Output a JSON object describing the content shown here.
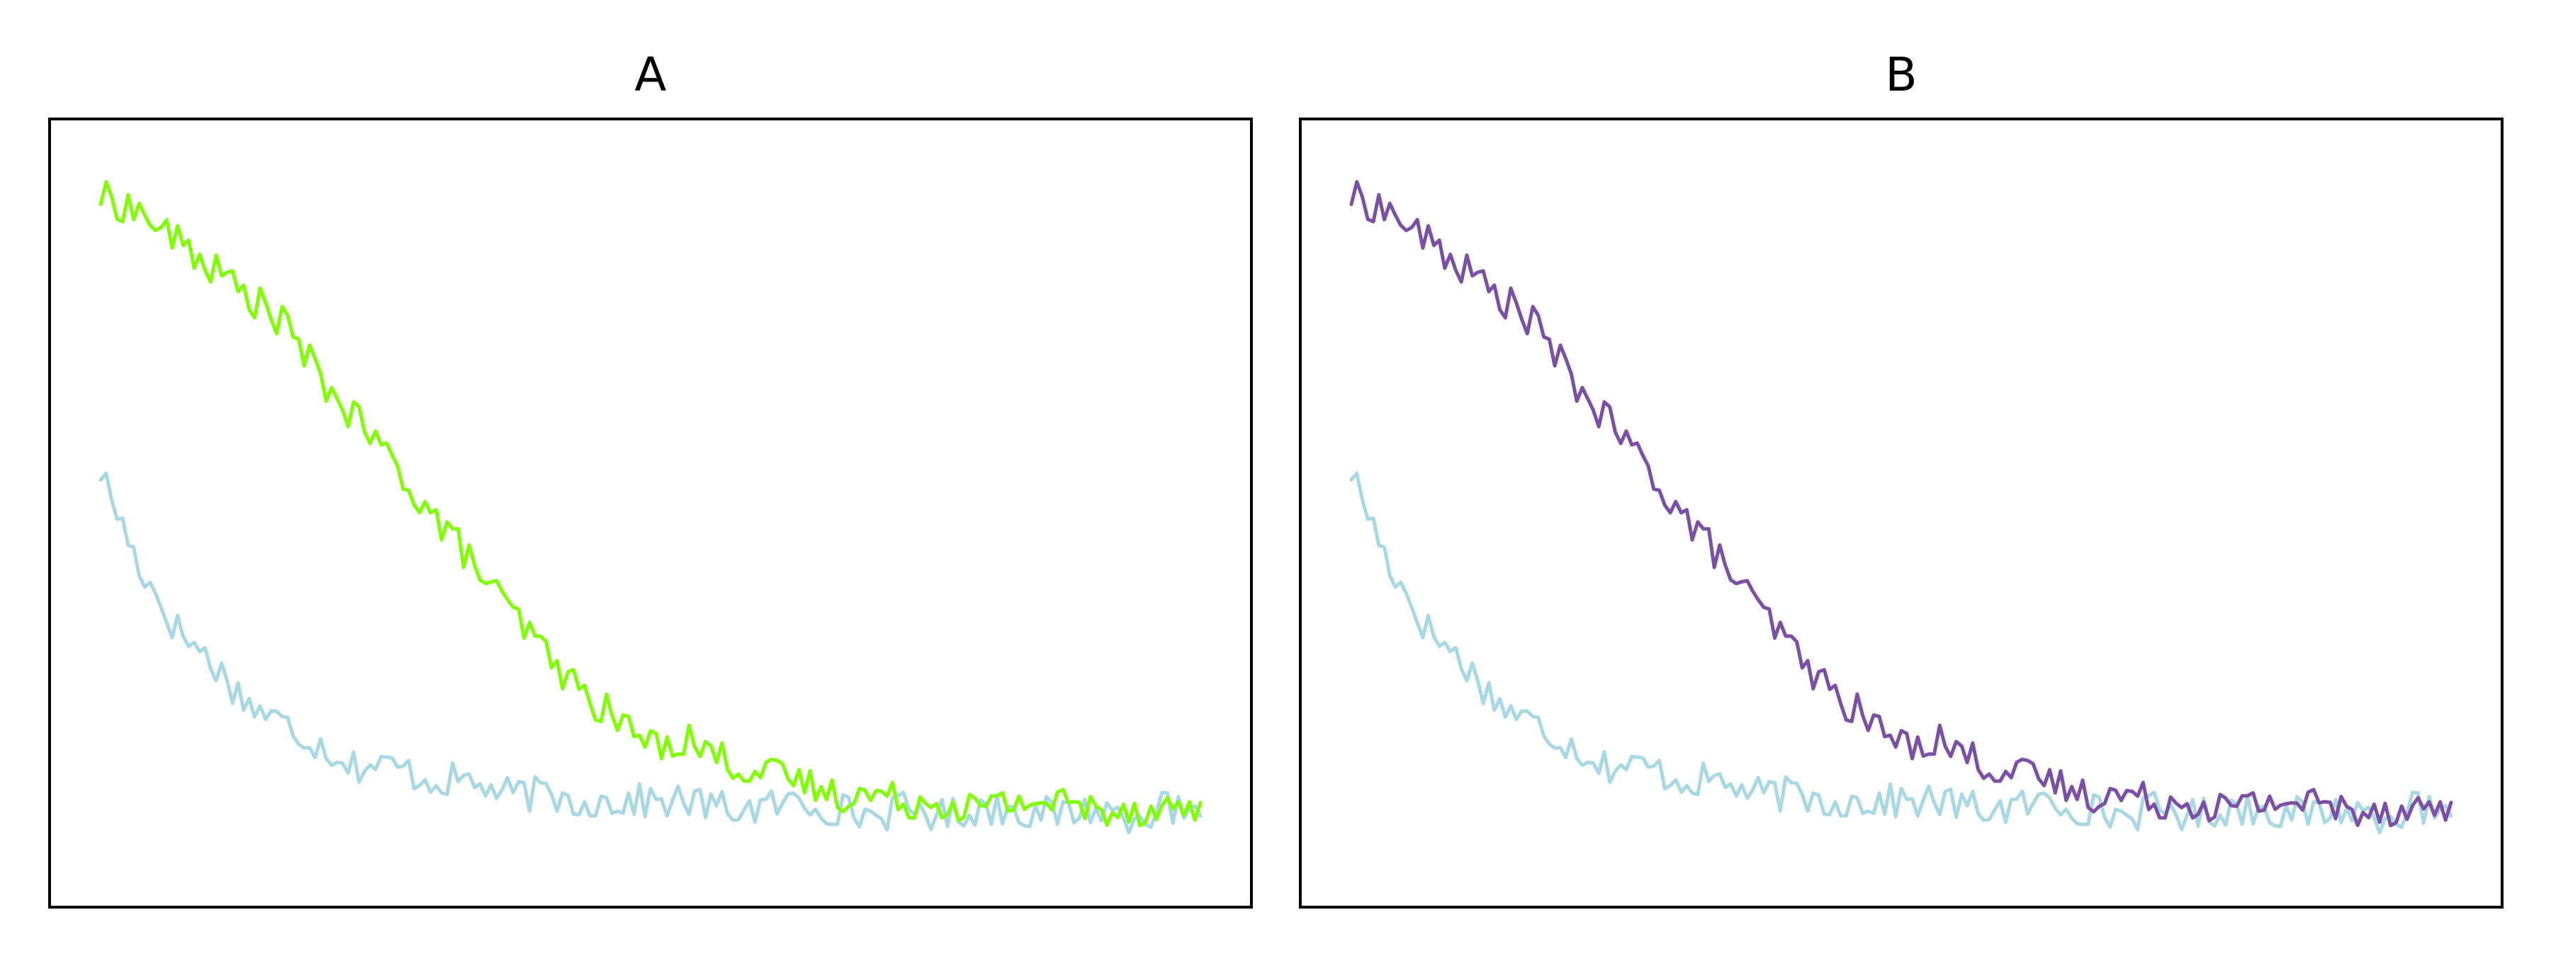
{
  "colors": {
    "baseline": "#a8d8e3",
    "panel_a": "#80ff00",
    "panel_b": "#7b4fa6"
  },
  "chart_data": [
    {
      "type": "line",
      "title": "A",
      "xlabel": "",
      "ylabel": "",
      "xlim": [
        0,
        300
      ],
      "ylim": [
        0.0,
        1.0
      ],
      "grid": false,
      "legend": "none",
      "axes_ticks": false,
      "series": [
        {
          "color": "#a8d8e3",
          "x": [
            0,
            10,
            20,
            30,
            40,
            50,
            60,
            70,
            80,
            90,
            100,
            110,
            120,
            130,
            140,
            150,
            160,
            170,
            180,
            190,
            200,
            210,
            220,
            230,
            240,
            250,
            260,
            270,
            280,
            290,
            300
          ],
          "y": [
            0.56,
            0.43,
            0.34,
            0.29,
            0.23,
            0.2,
            0.17,
            0.14,
            0.14,
            0.12,
            0.12,
            0.1,
            0.1,
            0.09,
            0.09,
            0.09,
            0.09,
            0.08,
            0.08,
            0.09,
            0.08,
            0.07,
            0.08,
            0.07,
            0.08,
            0.08,
            0.07,
            0.08,
            0.07,
            0.08,
            0.06
          ]
        },
        {
          "color": "#80ff00",
          "x": [
            0,
            10,
            20,
            30,
            40,
            50,
            60,
            70,
            80,
            90,
            100,
            110,
            120,
            130,
            140,
            150,
            160,
            170,
            180,
            190,
            200,
            210,
            220,
            230,
            240,
            250,
            260,
            270,
            280,
            290,
            300
          ],
          "y": [
            0.95,
            0.93,
            0.89,
            0.85,
            0.81,
            0.77,
            0.69,
            0.63,
            0.57,
            0.5,
            0.44,
            0.37,
            0.31,
            0.25,
            0.21,
            0.17,
            0.18,
            0.15,
            0.13,
            0.12,
            0.1,
            0.1,
            0.09,
            0.09,
            0.08,
            0.09,
            0.09,
            0.08,
            0.08,
            0.08,
            0.08
          ]
        }
      ]
    },
    {
      "type": "line",
      "title": "B",
      "xlabel": "",
      "ylabel": "",
      "xlim": [
        0,
        300
      ],
      "ylim": [
        0.0,
        1.0
      ],
      "grid": false,
      "legend": "none",
      "axes_ticks": false,
      "series": [
        {
          "color": "#a8d8e3",
          "x": [
            0,
            10,
            20,
            30,
            40,
            50,
            60,
            70,
            80,
            90,
            100,
            110,
            120,
            130,
            140,
            150,
            160,
            170,
            180,
            190,
            200,
            210,
            220,
            230,
            240,
            250,
            260,
            270,
            280,
            290,
            300
          ],
          "y": [
            0.56,
            0.43,
            0.34,
            0.29,
            0.23,
            0.2,
            0.17,
            0.14,
            0.14,
            0.12,
            0.12,
            0.1,
            0.1,
            0.09,
            0.09,
            0.09,
            0.09,
            0.08,
            0.08,
            0.09,
            0.08,
            0.07,
            0.08,
            0.07,
            0.08,
            0.08,
            0.07,
            0.08,
            0.07,
            0.08,
            0.06
          ]
        },
        {
          "color": "#7b4fa6",
          "x": [
            0,
            10,
            20,
            30,
            40,
            50,
            60,
            70,
            80,
            90,
            100,
            110,
            120,
            130,
            140,
            150,
            160,
            170,
            180,
            190,
            200,
            210,
            220,
            230,
            240,
            250,
            260,
            270,
            280,
            290,
            300
          ],
          "y": [
            0.95,
            0.93,
            0.89,
            0.85,
            0.81,
            0.77,
            0.69,
            0.63,
            0.57,
            0.5,
            0.44,
            0.37,
            0.31,
            0.25,
            0.21,
            0.17,
            0.18,
            0.15,
            0.13,
            0.12,
            0.1,
            0.1,
            0.09,
            0.09,
            0.08,
            0.09,
            0.09,
            0.08,
            0.08,
            0.08,
            0.08
          ]
        }
      ]
    }
  ]
}
